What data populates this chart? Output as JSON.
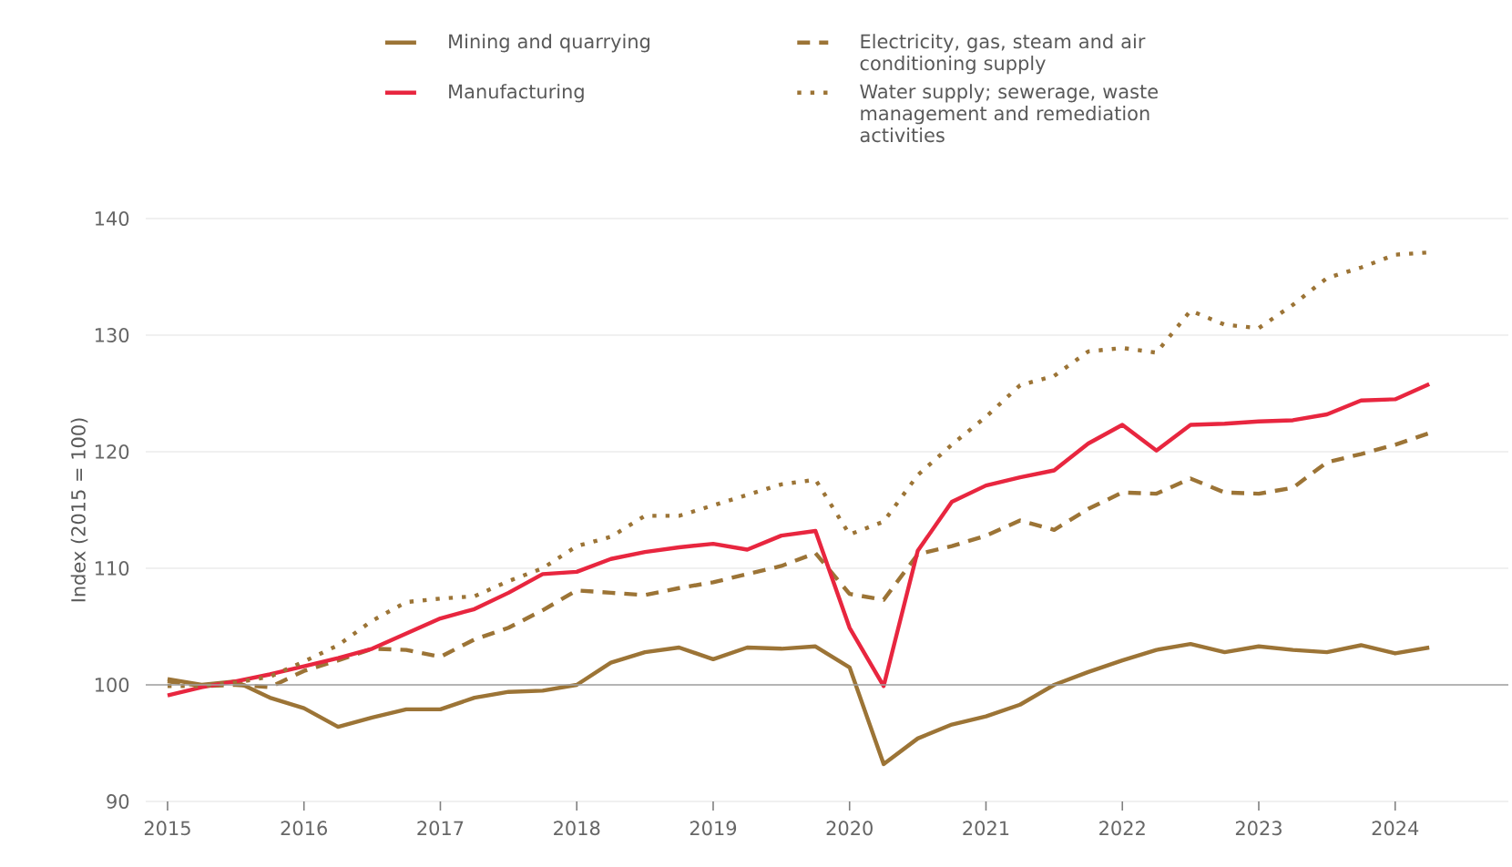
{
  "chart_data": {
    "type": "line",
    "ylabel": "Index (2015 = 100)",
    "x": [
      2015,
      2015.25,
      2015.5,
      2015.75,
      2016,
      2016.25,
      2016.5,
      2016.75,
      2017,
      2017.25,
      2017.5,
      2017.75,
      2018,
      2018.25,
      2018.5,
      2018.75,
      2019,
      2019.25,
      2019.5,
      2019.75,
      2020,
      2020.25,
      2020.5,
      2020.75,
      2021,
      2021.25,
      2021.5,
      2021.75,
      2022,
      2022.25,
      2022.5,
      2022.75,
      2023,
      2023.25,
      2023.5,
      2023.75,
      2024,
      2024.25
    ],
    "series": [
      {
        "name": "Mining and quarrying",
        "color": "#9c7436",
        "line_style": "solid",
        "values": [
          100.5,
          100,
          100.3,
          98.9,
          98,
          96.4,
          97.2,
          97.9,
          97.9,
          98.9,
          99.4,
          99.5,
          100,
          101.9,
          102.8,
          103.2,
          102.2,
          103.2,
          103.1,
          103.3,
          101.5,
          93.2,
          95.4,
          96.6,
          97.3,
          98.3,
          100,
          101.1,
          102.1,
          103,
          103.5,
          102.8,
          103.3,
          103,
          102.8,
          103.4,
          102.7,
          103.2
        ]
      },
      {
        "name": "Electricity, gas, steam and air conditioning supply",
        "color": "#9c7436",
        "line_style": "dashed",
        "values": [
          100.3,
          99.9,
          100,
          99.8,
          101.2,
          102.1,
          103.1,
          103,
          102.4,
          103.9,
          104.9,
          106.4,
          108.1,
          107.9,
          107.7,
          108.3,
          108.8,
          109.5,
          110.2,
          111.3,
          107.8,
          107.3,
          111.2,
          111.9,
          112.8,
          114.1,
          113.3,
          115.1,
          116.5,
          116.4,
          117.7,
          116.5,
          116.4,
          116.9,
          119.1,
          119.8,
          120.6,
          121.6
        ]
      },
      {
        "name": "Manufacturing",
        "color": "#e8263f",
        "line_style": "solid",
        "values": [
          99.1,
          99.8,
          100.3,
          100.9,
          101.6,
          102.3,
          103.1,
          104.4,
          105.7,
          106.5,
          107.9,
          109.5,
          109.7,
          110.8,
          111.4,
          111.8,
          112.1,
          111.6,
          112.8,
          113.2,
          104.9,
          99.9,
          111.5,
          115.7,
          117.1,
          117.8,
          118.4,
          120.7,
          122.3,
          120.1,
          122.3,
          122.4,
          122.6,
          122.7,
          123.2,
          124.4,
          124.5,
          125.8
        ]
      },
      {
        "name": "Water supply; sewerage, waste management and remediation activities",
        "color": "#9c7436",
        "line_style": "dotted",
        "values": [
          99.9,
          99.9,
          100.2,
          100.7,
          102,
          103.4,
          105.5,
          107.1,
          107.4,
          107.6,
          108.9,
          110,
          111.9,
          112.7,
          114.5,
          114.5,
          115.4,
          116.3,
          117.2,
          117.6,
          112.9,
          114,
          118,
          120.6,
          123,
          125.7,
          126.5,
          128.6,
          128.9,
          128.5,
          132.1,
          130.9,
          130.6,
          132.6,
          134.9,
          135.8,
          136.9,
          137.1
        ]
      }
    ],
    "xlim": [
      2014.84,
      2024.83
    ],
    "ylim": [
      90,
      140
    ],
    "xticks": [
      2015,
      2016,
      2017,
      2018,
      2019,
      2020,
      2021,
      2022,
      2023,
      2024
    ],
    "yticks": [
      90,
      100,
      110,
      120,
      130,
      140
    ],
    "ref_lines": [
      {
        "axis": "y",
        "value": 100,
        "color": "#a0a0a0"
      }
    ],
    "grid": "y",
    "legend": "top",
    "marker": "none"
  }
}
